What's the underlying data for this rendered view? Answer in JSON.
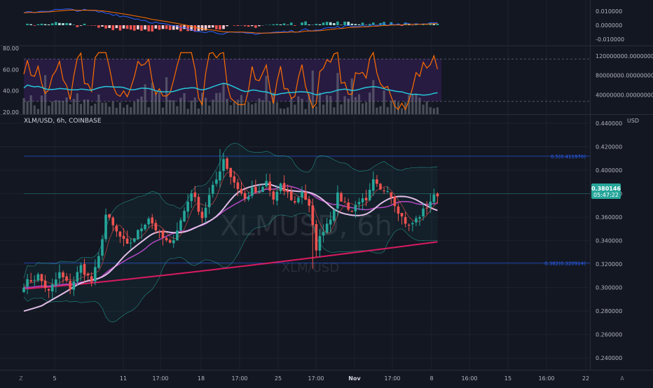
{
  "chart_data": {
    "type": "candlestick",
    "symbol_label": "XLM/USD, 6h, COINBASE",
    "watermark_big": "XLMUSD, 6h",
    "watermark_small": "XLM/USD",
    "currency": "USD",
    "last_price": "0.380146",
    "countdown": "05:47:22",
    "price_axis": {
      "min": 0.23,
      "max": 0.44,
      "ticks": [
        0.44,
        0.42,
        0.4,
        0.38,
        0.36,
        0.34,
        0.32,
        0.3,
        0.28,
        0.26,
        0.24
      ],
      "tick_labels": [
        "0.440000",
        "0.420000",
        "0.400000",
        "0.380000",
        "0.360000",
        "0.340000",
        "0.320000",
        "0.300000",
        "0.280000",
        "0.260000",
        "0.240000"
      ]
    },
    "fib_levels": [
      {
        "label": "0.5(0.411970)",
        "value": 0.41197
      },
      {
        "label": "0.382(0.320914)",
        "value": 0.320914
      }
    ],
    "time_labels": [
      {
        "label": "5",
        "x": 78
      },
      {
        "label": "11",
        "x": 176
      },
      {
        "label": "17:00",
        "x": 229
      },
      {
        "label": "18",
        "x": 287
      },
      {
        "label": "17:00",
        "x": 342
      },
      {
        "label": "25",
        "x": 397
      },
      {
        "label": "17:00",
        "x": 451
      },
      {
        "label": "Nov",
        "x": 506
      },
      {
        "label": "17:00",
        "x": 560
      },
      {
        "label": "8",
        "x": 616
      },
      {
        "label": "16:00",
        "x": 670
      },
      {
        "label": "15",
        "x": 725
      },
      {
        "label": "16:00",
        "x": 780
      },
      {
        "label": "22",
        "x": 836
      }
    ],
    "candle_count": 117,
    "anchors": [
      [
        0,
        0.303
      ],
      [
        4,
        0.31
      ],
      [
        7,
        0.296
      ],
      [
        10,
        0.312
      ],
      [
        13,
        0.3
      ],
      [
        16,
        0.318
      ],
      [
        19,
        0.305
      ],
      [
        21,
        0.325
      ],
      [
        23,
        0.362
      ],
      [
        26,
        0.347
      ],
      [
        29,
        0.335
      ],
      [
        32,
        0.347
      ],
      [
        35,
        0.36
      ],
      [
        38,
        0.345
      ],
      [
        41,
        0.336
      ],
      [
        44,
        0.357
      ],
      [
        47,
        0.382
      ],
      [
        50,
        0.36
      ],
      [
        52,
        0.378
      ],
      [
        54,
        0.392
      ],
      [
        56,
        0.41
      ],
      [
        58,
        0.395
      ],
      [
        60,
        0.385
      ],
      [
        62,
        0.375
      ],
      [
        64,
        0.383
      ],
      [
        66,
        0.38
      ],
      [
        68,
        0.39
      ],
      [
        70,
        0.375
      ],
      [
        72,
        0.386
      ],
      [
        74,
        0.38
      ],
      [
        76,
        0.372
      ],
      [
        78,
        0.383
      ],
      [
        80,
        0.368
      ],
      [
        82,
        0.334
      ],
      [
        84,
        0.35
      ],
      [
        86,
        0.36
      ],
      [
        88,
        0.378
      ],
      [
        90,
        0.372
      ],
      [
        92,
        0.365
      ],
      [
        94,
        0.375
      ],
      [
        96,
        0.372
      ],
      [
        98,
        0.39
      ],
      [
        100,
        0.382
      ],
      [
        102,
        0.385
      ],
      [
        104,
        0.372
      ],
      [
        106,
        0.36
      ],
      [
        108,
        0.352
      ],
      [
        110,
        0.358
      ],
      [
        112,
        0.365
      ],
      [
        114,
        0.374
      ],
      [
        116,
        0.38
      ]
    ],
    "macd_axis": {
      "tick_labels": [
        "0.010000",
        "0.000000",
        "-0.010000"
      ],
      "ticks": [
        0.01,
        0,
        -0.01
      ],
      "min": -0.014,
      "max": 0.017
    },
    "rsi_axis": {
      "tick_labels": [
        "80.00",
        "60.00",
        "40.00",
        "20.00"
      ],
      "ticks": [
        80,
        60,
        40,
        20
      ],
      "min": 18,
      "max": 82,
      "upper_band": 70,
      "lower_band": 30
    },
    "volume_axis": {
      "tick_labels": [
        "120000000.00000000",
        "80000000.00000000",
        "40000000.00000000"
      ],
      "ticks": [
        120000000,
        80000000,
        40000000
      ]
    },
    "colors": {
      "up": "#26a69a",
      "down": "#ef5350",
      "fib": "#2962ff",
      "ma_fast": "#e1bee7",
      "ma_mid": "#ab47bc",
      "ma_slow": "#d81b60",
      "bb": "#26a69a",
      "rsi": "#ff6d00",
      "rsi_ma": "#26c6da",
      "macd": "#2962ff",
      "signal": "#ff6d00",
      "rsi_fill": "#2a1c45"
    }
  },
  "bottom_bar": {
    "left_icon": "Z",
    "right_icon": "A"
  }
}
